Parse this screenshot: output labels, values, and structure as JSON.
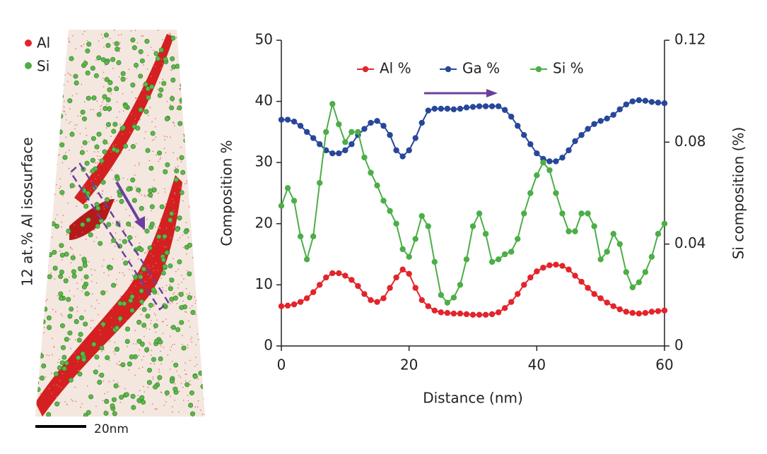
{
  "image_panel": {
    "legend": [
      "Al",
      "Si"
    ],
    "side_label": "12 at.% Al isosurface",
    "scale_bar": "20nm"
  },
  "chart_data": {
    "type": "line",
    "xlabel": "Distance (nm)",
    "ylabel": "Composition %",
    "y2label": "Si composition (%)",
    "x": [
      0,
      1,
      2,
      3,
      4,
      5,
      6,
      7,
      8,
      9,
      10,
      11,
      12,
      13,
      14,
      15,
      16,
      17,
      18,
      19,
      20,
      21,
      22,
      23,
      24,
      25,
      26,
      27,
      28,
      29,
      30,
      31,
      32,
      33,
      34,
      35,
      36,
      37,
      38,
      39,
      40,
      41,
      42,
      43,
      44,
      45,
      46,
      47,
      48,
      49,
      50,
      51,
      52,
      53,
      54,
      55,
      56,
      57,
      58,
      59,
      60
    ],
    "series": [
      {
        "name": "Al %",
        "color": "#e3242b",
        "values": [
          6.5,
          6.6,
          6.8,
          7.2,
          7.8,
          8.8,
          10,
          11.2,
          11.9,
          11.9,
          11.5,
          10.8,
          9.8,
          8.5,
          7.5,
          7.2,
          7.8,
          9.5,
          11.2,
          12.5,
          11.8,
          9.5,
          7.5,
          6.5,
          5.8,
          5.5,
          5.4,
          5.3,
          5.3,
          5.2,
          5.1,
          5.1,
          5.1,
          5.2,
          5.5,
          6.2,
          7.2,
          8.5,
          10,
          11.2,
          12.2,
          12.8,
          13.2,
          13.3,
          13.1,
          12.5,
          11.5,
          10.5,
          9.5,
          8.5,
          7.8,
          7.1,
          6.5,
          6,
          5.6,
          5.4,
          5.3,
          5.4,
          5.6,
          5.7,
          5.8
        ]
      },
      {
        "name": "Ga %",
        "color": "#27479a",
        "values": [
          37,
          37,
          36.7,
          36,
          35,
          34,
          33,
          32,
          31.5,
          31.5,
          32,
          33,
          34.5,
          35.5,
          36.5,
          36.8,
          36,
          34.5,
          32,
          31,
          32,
          34,
          36.5,
          38.5,
          38.8,
          38.8,
          38.8,
          38.7,
          38.8,
          39,
          39.1,
          39.2,
          39.2,
          39.2,
          39.2,
          38.6,
          37.5,
          36,
          34.5,
          33,
          31.5,
          30.6,
          30.2,
          30.2,
          30.8,
          32,
          33.5,
          34.5,
          35.5,
          36.3,
          36.8,
          37.2,
          37.8,
          38.7,
          39.5,
          40,
          40.2,
          40.1,
          39.9,
          39.8,
          39.7
        ]
      },
      {
        "name": "Si %",
        "color": "#4cae47",
        "axis": "y2",
        "values": [
          0.055,
          0.062,
          0.057,
          0.043,
          0.034,
          0.043,
          0.064,
          0.084,
          0.095,
          0.087,
          0.08,
          0.084,
          0.084,
          0.074,
          0.068,
          0.063,
          0.057,
          0.053,
          0.048,
          0.038,
          0.035,
          0.042,
          0.051,
          0.047,
          0.033,
          0.02,
          0.017,
          0.019,
          0.024,
          0.034,
          0.047,
          0.052,
          0.044,
          0.033,
          0.034,
          0.036,
          0.037,
          0.042,
          0.052,
          0.06,
          0.067,
          0.072,
          0.069,
          0.06,
          0.052,
          0.045,
          0.045,
          0.052,
          0.052,
          0.047,
          0.034,
          0.037,
          0.044,
          0.04,
          0.029,
          0.023,
          0.025,
          0.029,
          0.035,
          0.044,
          0.048
        ]
      }
    ],
    "xlim": [
      0,
      60
    ],
    "xticks": [
      0,
      20,
      40,
      60
    ],
    "ylim": [
      0,
      50
    ],
    "yticks": [
      0,
      10,
      20,
      30,
      40,
      50
    ],
    "y2lim": [
      0,
      0.12
    ],
    "y2ticks": [
      0,
      0.04,
      0.08,
      0.12
    ],
    "legend": "top"
  }
}
